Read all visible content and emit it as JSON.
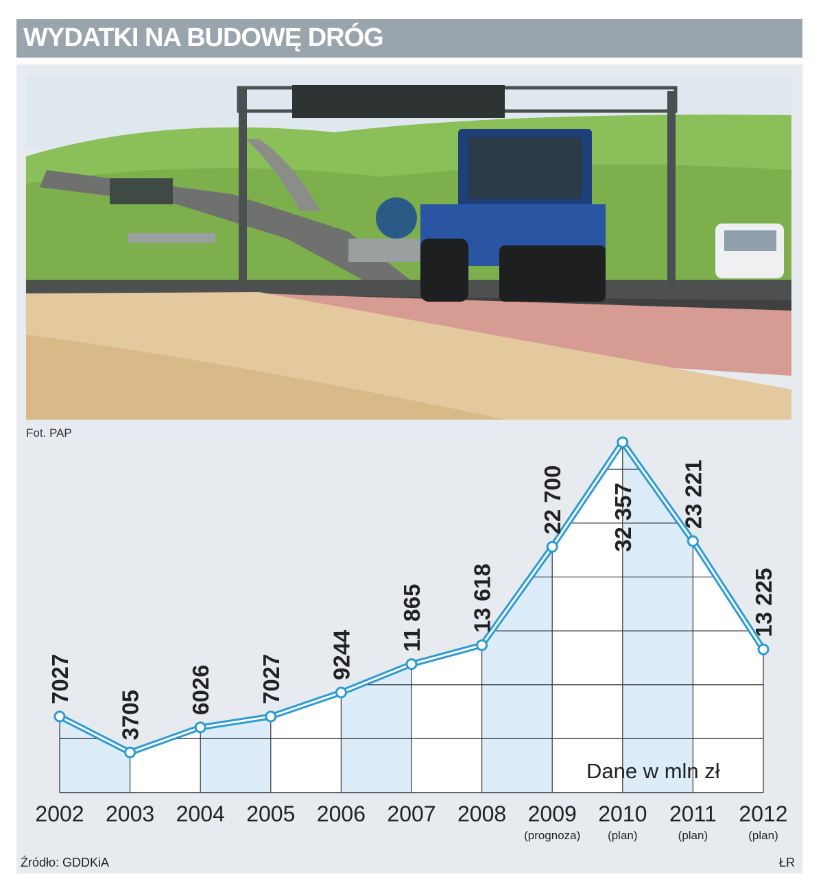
{
  "header": {
    "title": "WYDATKI NA BUDOWĘ DRÓG"
  },
  "photo": {
    "credit": "Fot. PAP",
    "subject": "road roller paving a new road"
  },
  "footer": {
    "source": "Źródło: GDDKiA",
    "author": "ŁR"
  },
  "colors": {
    "line": "#2b9bd3",
    "fill": "#dcedf9",
    "grid": "#333333",
    "panel": "#e7ebf0",
    "header": "#9aa4ad"
  },
  "chart_data": {
    "type": "line",
    "title": "WYDATKI NA BUDOWĘ DRÓG",
    "unit_note": "Dane w mln zł",
    "categories": [
      "2002",
      "2003",
      "2004",
      "2005",
      "2006",
      "2007",
      "2008",
      "2009",
      "2010",
      "2011",
      "2012"
    ],
    "category_notes": [
      "",
      "",
      "",
      "",
      "",
      "",
      "",
      "(prognoza)",
      "(plan)",
      "(plan)",
      "(plan)"
    ],
    "values": [
      7027,
      3705,
      6026,
      7027,
      9244,
      11865,
      13618,
      22700,
      32357,
      23221,
      13225
    ],
    "value_labels": [
      "7027",
      "3705",
      "6026",
      "7027",
      "9244",
      "11 865",
      "13 618",
      "22 700",
      "32 357",
      "23 221",
      "13 225"
    ],
    "ylim": [
      0,
      32357
    ],
    "grid": true,
    "legend": "none"
  }
}
